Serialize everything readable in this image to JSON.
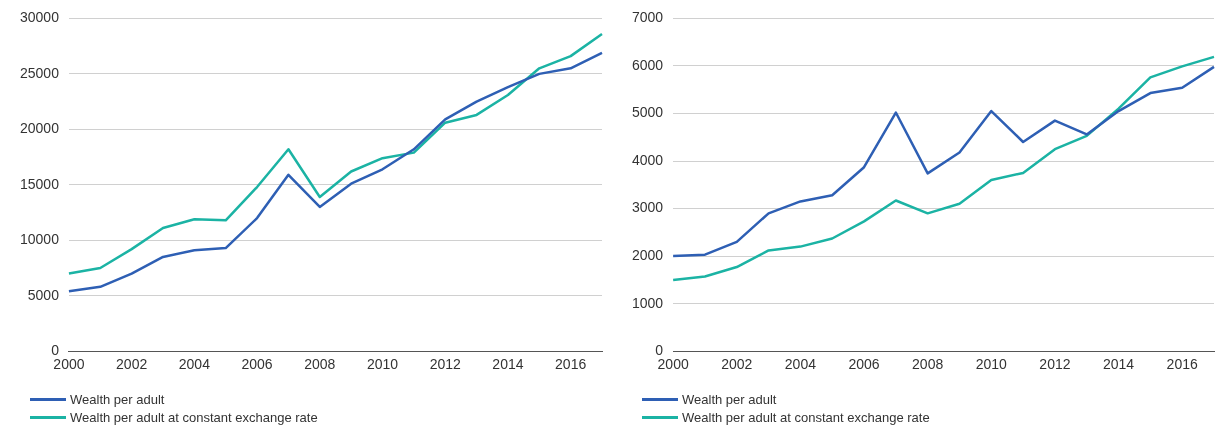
{
  "chart_data": [
    {
      "type": "line",
      "categories": [
        "2000",
        null,
        "2002",
        null,
        "2004",
        null,
        "2006",
        null,
        "2008",
        null,
        "2010",
        null,
        "2012",
        null,
        "2014",
        null,
        "2016",
        null
      ],
      "series": [
        {
          "name": "Wealth per adult",
          "color": "#2e5fb4",
          "values": [
            5400,
            5800,
            7000,
            8500,
            9100,
            9300,
            12000,
            15900,
            13000,
            15100,
            16400,
            18200,
            20900,
            22500,
            23800,
            25000,
            25500,
            26900
          ]
        },
        {
          "name": "Wealth per adult at constant exchange rate",
          "color": "#1bb3a4",
          "values": [
            7000,
            7500,
            9200,
            11100,
            11900,
            11800,
            14800,
            18200,
            13900,
            16200,
            17400,
            17900,
            20600,
            21300,
            23100,
            25500,
            26600,
            28600
          ]
        }
      ],
      "ylim": [
        0,
        30000
      ],
      "yticks": [
        0,
        5000,
        10000,
        15000,
        20000,
        25000,
        30000
      ],
      "grid": "y",
      "legend": "bottom left",
      "marker": "none",
      "line_style": "solid"
    },
    {
      "type": "line",
      "categories": [
        "2000",
        null,
        "2002",
        null,
        "2004",
        null,
        "2006",
        null,
        "2008",
        null,
        "2010",
        null,
        "2012",
        null,
        "2014",
        null,
        "2016",
        null
      ],
      "series": [
        {
          "name": "Wealth per adult",
          "color": "#2e5fb4",
          "values": [
            2000,
            2030,
            2300,
            2900,
            3150,
            3280,
            3870,
            5020,
            3740,
            4180,
            5050,
            4400,
            4850,
            4560,
            5050,
            5430,
            5540,
            5980
          ]
        },
        {
          "name": "Wealth per adult at constant exchange rate",
          "color": "#1bb3a4",
          "values": [
            1500,
            1570,
            1770,
            2120,
            2200,
            2370,
            2730,
            3170,
            2900,
            3100,
            3600,
            3750,
            4250,
            4530,
            5100,
            5760,
            5990,
            6190
          ]
        }
      ],
      "ylim": [
        0,
        7000
      ],
      "yticks": [
        0,
        1000,
        2000,
        3000,
        4000,
        5000,
        6000,
        7000
      ],
      "grid": "y",
      "legend": "bottom left",
      "marker": "none",
      "line_style": "solid"
    }
  ]
}
